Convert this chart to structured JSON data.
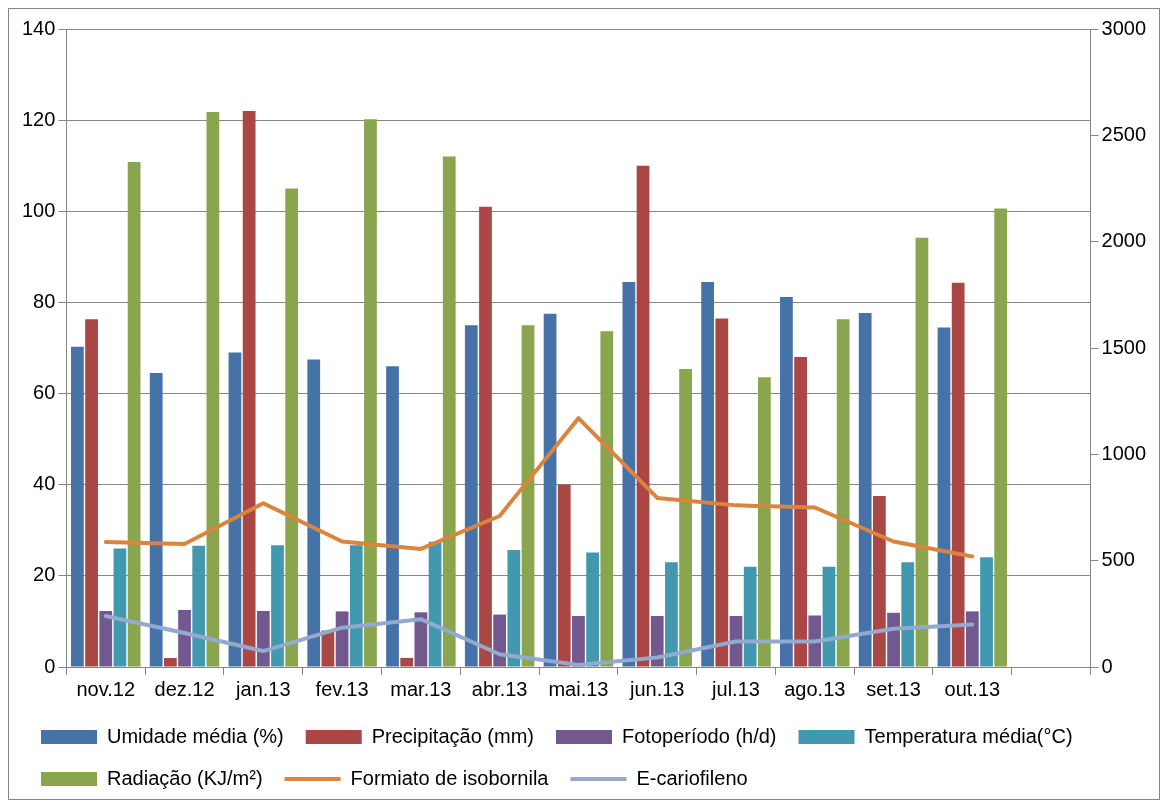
{
  "chart_data": {
    "type": "bar",
    "categories": [
      "nov.12",
      "dez.12",
      "jan.13",
      "fev.13",
      "mar.13",
      "abr.13",
      "mai.13",
      "jun.13",
      "jul.13",
      "ago.13",
      "set.13",
      "out.13",
      null
    ],
    "series": [
      {
        "name": "Umidade média (%)",
        "color": "#4572a7",
        "values": [
          70.3,
          64.5,
          69,
          67.5,
          66,
          75,
          77.5,
          84.5,
          84.5,
          81.2,
          77.7,
          74.5,
          null
        ]
      },
      {
        "name": "Precipitação (mm)",
        "color": "#aa4643",
        "values": [
          76.3,
          2,
          122,
          8,
          2,
          101,
          40,
          110,
          76.5,
          68,
          37.5,
          84.3,
          null
        ]
      },
      {
        "name": "Fotoperíodo (h/d)",
        "color": "#71588f",
        "values": [
          12.3,
          12.5,
          12.3,
          12.2,
          12,
          11.5,
          11.2,
          11.2,
          11.2,
          11.3,
          11.9,
          12.2,
          null
        ]
      },
      {
        "name": "Temperatura média(°C)",
        "color": "#4198af",
        "values": [
          26,
          26.6,
          26.7,
          26.7,
          27.5,
          25.7,
          25.1,
          23,
          22,
          22,
          23,
          24.1,
          null
        ]
      },
      {
        "name": "Radiação (KJ/m²)",
        "color": "#89a54e",
        "values": [
          110.8,
          121.8,
          105,
          120.2,
          112,
          75,
          73.7,
          65.4,
          63.6,
          76.3,
          94.2,
          100.6,
          null
        ]
      },
      {
        "name": "Formiato de isobornila",
        "type": "line",
        "axis": "y2",
        "color": "#db843d",
        "values": [
          588,
          578,
          770,
          590,
          555,
          710,
          1170,
          795,
          760,
          750,
          590,
          520,
          null
        ]
      },
      {
        "name": "E-cariofileno",
        "type": "line",
        "axis": "y2",
        "color": "#93a9cf",
        "values": [
          240,
          160,
          75,
          185,
          225,
          60,
          10,
          45,
          120,
          120,
          180,
          200,
          null
        ]
      }
    ],
    "ylim": [
      0,
      140
    ],
    "yticks": [
      0,
      20,
      40,
      60,
      80,
      100,
      120,
      140
    ],
    "y2lim": [
      0,
      3000
    ],
    "y2ticks": [
      0,
      500,
      1000,
      1500,
      2000,
      2500,
      3000
    ],
    "grid": "y",
    "legend": "bottom",
    "marker": "none"
  }
}
